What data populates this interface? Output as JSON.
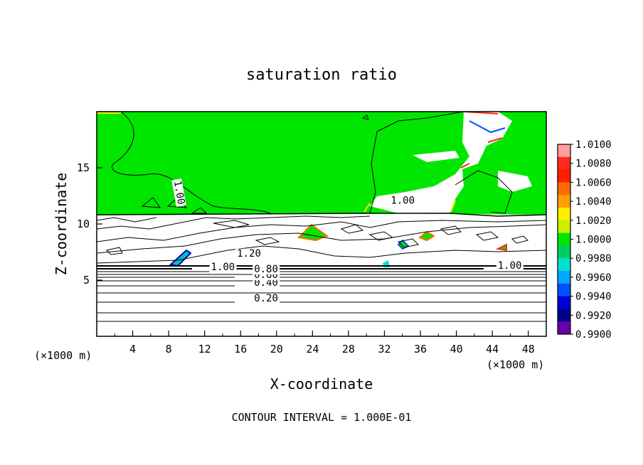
{
  "chart_data": {
    "type": "heatmap",
    "title": "saturation ratio",
    "xlabel": "X-coordinate",
    "ylabel": "Z-coordinate",
    "x_unit_left": "(×1000 m)",
    "x_unit_right": "(×1000 m)",
    "xlim": [
      0,
      50
    ],
    "ylim": [
      0,
      20
    ],
    "xticks": [
      4,
      8,
      12,
      16,
      20,
      24,
      28,
      32,
      36,
      40,
      44,
      48
    ],
    "yticks": [
      5,
      10,
      15
    ],
    "footer": "CONTOUR INTERVAL = 1.000E-01",
    "contour_interval": 0.1,
    "contour_labels": [
      {
        "text": "0.20",
        "x": 17.5,
        "y": 3.1
      },
      {
        "text": "0.40",
        "x": 17.5,
        "y": 4.5
      },
      {
        "text": "0.60",
        "x": 17.5,
        "y": 5.2
      },
      {
        "text": "0.80",
        "x": 17.5,
        "y": 5.7
      },
      {
        "text": "1.00",
        "x": 12.7,
        "y": 5.9
      },
      {
        "text": "1.20",
        "x": 15.6,
        "y": 7.1
      },
      {
        "text": "1.00",
        "x": 8.6,
        "y": 13.8
      },
      {
        "text": "1.00",
        "x": 32.7,
        "y": 11.8
      },
      {
        "text": "1.00",
        "x": 44.6,
        "y": 6.0
      }
    ],
    "colorbar": {
      "ticks": [
        "1.0100",
        "1.0080",
        "1.0060",
        "1.0040",
        "1.0020",
        "1.0000",
        "0.9980",
        "0.9960",
        "0.9940",
        "0.9920",
        "0.9900"
      ],
      "min": 0.99,
      "max": 1.01,
      "colors": [
        "#ff9e9e",
        "#ff2a1a",
        "#ff1e00",
        "#ff6a00",
        "#ffa000",
        "#ffee00",
        "#c8f000",
        "#00e600",
        "#00cc66",
        "#00e0d0",
        "#00a8ff",
        "#0050ff",
        "#0000d8",
        "#00008a",
        "#6a00a8"
      ]
    },
    "grid": false,
    "legend_position": "right"
  }
}
